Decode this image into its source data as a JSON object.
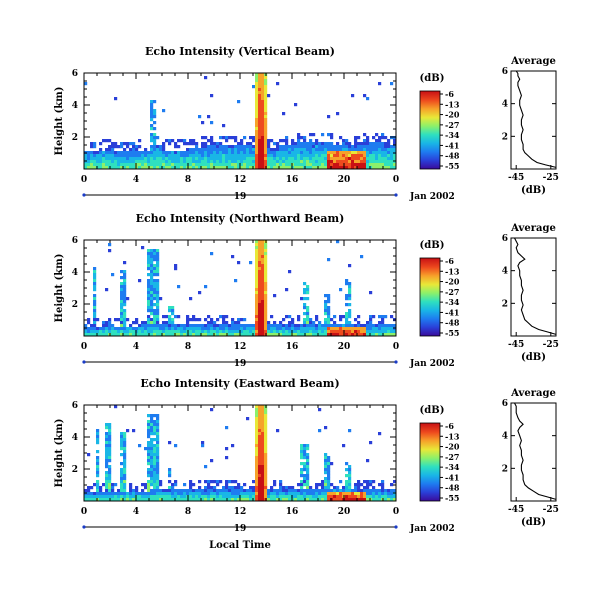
{
  "date_label": "Jan 2002",
  "day_label": "19",
  "xlabel_bottom": "Local Time",
  "ylabel": "Height (km)",
  "colorbar_unit": "(dB)",
  "colorbar_ticks": [
    "-6",
    "-13",
    "-20",
    "-27",
    "-34",
    "-41",
    "-48",
    "-55"
  ],
  "profile_title": "Average",
  "profile_xlabel": "(dB)",
  "colormap": [
    "#3a0a9a",
    "#2a3fd8",
    "#1e7cf0",
    "#19b6e6",
    "#2fe0bf",
    "#8cf06a",
    "#e8e838",
    "#f6a22a",
    "#ee4a1e",
    "#c81014"
  ],
  "chart_data": [
    {
      "type": "heatmap",
      "title": "Echo Intensity (Vertical Beam)",
      "xlabel": "Local Time",
      "ylabel": "Height (km)",
      "x_ticks": [
        "0",
        "4",
        "8",
        "12",
        "16",
        "20",
        "0"
      ],
      "xlim": [
        0,
        24
      ],
      "y_ticks": [
        "2",
        "4",
        "6"
      ],
      "ylim": [
        0,
        6
      ],
      "colorbar": {
        "label": "(dB)",
        "range": [
          -55,
          -6
        ],
        "ticks": [
          -6,
          -13,
          -20,
          -27,
          -34,
          -41,
          -48,
          -55
        ]
      },
      "features": {
        "boundary_layer_top_km": [
          1.2,
          1.3,
          1.2,
          1.2,
          1.3,
          1.6,
          1.3,
          1.3,
          1.4,
          1.5,
          1.5,
          1.5,
          1.6,
          1.7,
          1.4,
          1.6,
          1.7,
          1.7,
          1.7,
          1.6,
          1.6,
          1.7,
          1.7,
          1.6,
          1.5
        ],
        "column_hours": [
          13.0,
          14.0
        ],
        "afternoon_hotspot_hours": [
          18.5,
          21.5
        ],
        "plumes": [
          {
            "start": 5.0,
            "end": 5.5,
            "top_km": 4.4
          }
        ]
      }
    },
    {
      "type": "line",
      "title": "Average",
      "xlabel": "(dB)",
      "ylabel": "",
      "x_ticks": [
        "-45",
        "-25"
      ],
      "xlim": [
        -48,
        -22
      ],
      "y_ticks": [
        "2",
        "4",
        "6"
      ],
      "ylim": [
        0,
        6
      ],
      "x": [
        -22,
        -28,
        -33,
        -36,
        -38,
        -40,
        -41,
        -41,
        -42,
        -42,
        -41,
        -42,
        -42,
        -41,
        -42,
        -43,
        -43,
        -42,
        -43,
        -44,
        -44,
        -43,
        -44,
        -44,
        -45
      ],
      "y": [
        0.1,
        0.25,
        0.4,
        0.6,
        0.8,
        1.0,
        1.2,
        1.5,
        1.8,
        2.1,
        2.4,
        2.7,
        3.0,
        3.3,
        3.6,
        3.9,
        4.2,
        4.5,
        4.8,
        5.1,
        5.3,
        5.5,
        5.7,
        5.85,
        6.0
      ]
    },
    {
      "type": "heatmap",
      "title": "Echo Intensity (Northward Beam)",
      "xlabel": "Local Time",
      "ylabel": "Height (km)",
      "x_ticks": [
        "0",
        "4",
        "8",
        "12",
        "16",
        "20",
        "0"
      ],
      "xlim": [
        0,
        24
      ],
      "y_ticks": [
        "2",
        "4",
        "6"
      ],
      "ylim": [
        0,
        6
      ],
      "colorbar": {
        "label": "(dB)",
        "range": [
          -55,
          -6
        ],
        "ticks": [
          -6,
          -13,
          -20,
          -27,
          -34,
          -41,
          -48,
          -55
        ]
      },
      "features": {
        "boundary_layer_top_km": [
          0.6,
          0.7,
          0.7,
          0.7,
          0.8,
          0.8,
          0.8,
          0.8,
          0.8,
          0.8,
          0.8,
          0.8,
          0.9,
          0.9,
          0.8,
          0.8,
          0.8,
          0.8,
          0.9,
          0.9,
          0.8,
          0.8,
          0.8,
          0.8,
          0.7
        ],
        "column_hours": [
          13.0,
          14.0
        ],
        "afternoon_hotspot_hours": [
          18.5,
          21.5
        ],
        "plumes": [
          {
            "start": 0.6,
            "end": 0.9,
            "top_km": 4.5
          },
          {
            "start": 2.7,
            "end": 3.2,
            "top_km": 4.3
          },
          {
            "start": 4.7,
            "end": 5.6,
            "top_km": 5.5
          },
          {
            "start": 6.4,
            "end": 6.7,
            "top_km": 1.9
          },
          {
            "start": 16.7,
            "end": 17.3,
            "top_km": 3.5
          },
          {
            "start": 18.3,
            "end": 18.8,
            "top_km": 2.8
          },
          {
            "start": 20.0,
            "end": 20.5,
            "top_km": 3.6
          }
        ]
      }
    },
    {
      "type": "line",
      "title": "Average",
      "xlabel": "(dB)",
      "ylabel": "",
      "x_ticks": [
        "-45",
        "-25"
      ],
      "xlim": [
        -48,
        -22
      ],
      "y_ticks": [
        "2",
        "4",
        "6"
      ],
      "ylim": [
        0,
        6
      ],
      "x": [
        -22,
        -27,
        -32,
        -36,
        -38,
        -40,
        -41,
        -42,
        -41,
        -42,
        -42,
        -41,
        -42,
        -42,
        -43,
        -43,
        -44,
        -43,
        -40,
        -42,
        -44,
        -45,
        -44,
        -45,
        -46
      ],
      "y": [
        0.1,
        0.25,
        0.4,
        0.6,
        0.8,
        1.0,
        1.3,
        1.6,
        1.9,
        2.2,
        2.5,
        2.8,
        3.1,
        3.4,
        3.7,
        4.0,
        4.3,
        4.5,
        4.7,
        4.9,
        5.1,
        5.4,
        5.6,
        5.8,
        6.0
      ]
    },
    {
      "type": "heatmap",
      "title": "Echo Intensity (Eastward Beam)",
      "xlabel": "Local Time",
      "ylabel": "Height (km)",
      "x_ticks": [
        "0",
        "4",
        "8",
        "12",
        "16",
        "20",
        "0"
      ],
      "xlim": [
        0,
        24
      ],
      "y_ticks": [
        "2",
        "4",
        "6"
      ],
      "ylim": [
        0,
        6
      ],
      "colorbar": {
        "label": "(dB)",
        "range": [
          -55,
          -6
        ],
        "ticks": [
          -6,
          -13,
          -20,
          -27,
          -34,
          -41,
          -48,
          -55
        ]
      },
      "features": {
        "boundary_layer_top_km": [
          0.6,
          0.6,
          0.7,
          0.7,
          0.7,
          0.8,
          0.8,
          0.8,
          0.8,
          0.8,
          0.8,
          0.8,
          0.8,
          0.9,
          0.8,
          0.8,
          0.8,
          0.8,
          0.9,
          0.9,
          0.9,
          0.8,
          0.8,
          0.8,
          0.7
        ],
        "column_hours": [
          13.0,
          14.0
        ],
        "afternoon_hotspot_hours": [
          18.5,
          21.5
        ],
        "plumes": [
          {
            "start": 0.7,
            "end": 1.0,
            "top_km": 4.6
          },
          {
            "start": 1.6,
            "end": 2.0,
            "top_km": 5.0
          },
          {
            "start": 2.6,
            "end": 3.2,
            "top_km": 4.4
          },
          {
            "start": 4.7,
            "end": 5.6,
            "top_km": 5.6
          },
          {
            "start": 6.3,
            "end": 6.6,
            "top_km": 2.2
          },
          {
            "start": 16.6,
            "end": 17.3,
            "top_km": 3.6
          },
          {
            "start": 18.4,
            "end": 18.9,
            "top_km": 3.0
          },
          {
            "start": 20.0,
            "end": 20.5,
            "top_km": 2.6
          }
        ]
      }
    },
    {
      "type": "line",
      "title": "Average",
      "xlabel": "(dB)",
      "ylabel": "",
      "x_ticks": [
        "-45",
        "-25"
      ],
      "xlim": [
        -48,
        -22
      ],
      "y_ticks": [
        "2",
        "4",
        "6"
      ],
      "ylim": [
        0,
        6
      ],
      "x": [
        -22,
        -27,
        -32,
        -35,
        -38,
        -40,
        -41,
        -41,
        -42,
        -42,
        -41,
        -42,
        -42,
        -43,
        -42,
        -43,
        -44,
        -43,
        -41,
        -43,
        -44,
        -45,
        -45,
        -45,
        -46
      ],
      "y": [
        0.1,
        0.25,
        0.4,
        0.6,
        0.8,
        1.0,
        1.3,
        1.6,
        1.9,
        2.2,
        2.5,
        2.8,
        3.1,
        3.4,
        3.7,
        4.0,
        4.3,
        4.5,
        4.7,
        4.9,
        5.1,
        5.4,
        5.6,
        5.8,
        6.0
      ]
    }
  ]
}
